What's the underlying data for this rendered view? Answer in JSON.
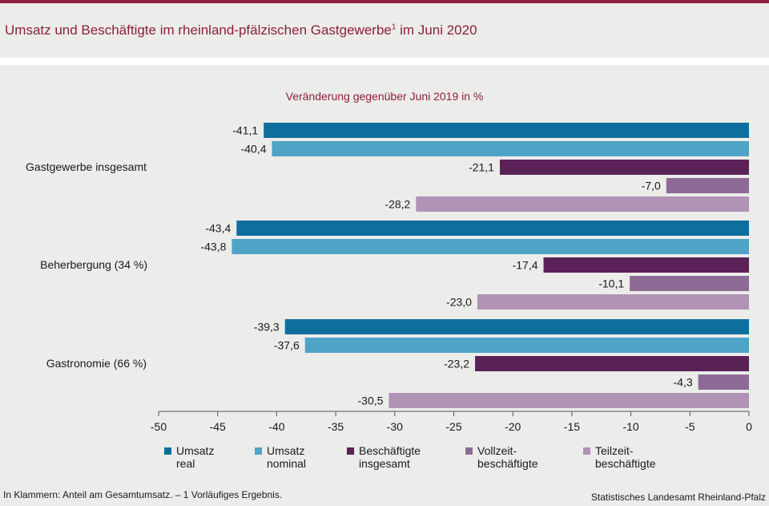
{
  "title_text": "Umsatz und Beschäftigte im rheinland-pfälzischen Gastgewerbe",
  "title_sup": "1",
  "title_suffix": " im Juni 2020",
  "footnote": "In Klammern: Anteil am Gesamtumsatz. – 1 Vorläufiges Ergebnis.",
  "source": "Statistisches Landesamt Rheinland-Pfalz",
  "colors": {
    "title": "#8c1f3c",
    "umsatz_real": "#0e6f9f",
    "umsatz_nominal": "#4fa3c6",
    "beschaeftigte_insgesamt": "#5b2258",
    "vollzeit": "#8e6b96",
    "teilzeit": "#b093b5"
  },
  "chart_data": {
    "type": "bar",
    "orientation": "horizontal",
    "subtitle": "Veränderung gegenüber Juni 2019 in %",
    "categories": [
      "Gastgewerbe insgesamt",
      "Beherbergung (34 %)",
      "Gastronomie (66 %)"
    ],
    "series": [
      {
        "name": "Umsatz real",
        "legend_lines": [
          "Umsatz",
          "real"
        ],
        "color": "#0e6f9f",
        "values": [
          -41.1,
          -43.4,
          -39.3
        ],
        "labels": [
          "-41,1",
          "-43,4",
          "-39,3"
        ]
      },
      {
        "name": "Umsatz nominal",
        "legend_lines": [
          "Umsatz",
          "nominal"
        ],
        "color": "#4fa3c6",
        "values": [
          -40.4,
          -43.8,
          -37.6
        ],
        "labels": [
          "-40,4",
          "-43,8",
          "-37,6"
        ]
      },
      {
        "name": "Beschäftigte insgesamt",
        "legend_lines": [
          "Beschäftigte",
          "insgesamt"
        ],
        "color": "#5b2258",
        "values": [
          -21.1,
          -17.4,
          -23.2
        ],
        "labels": [
          "-21,1",
          "-17,4",
          "-23,2"
        ]
      },
      {
        "name": "Vollzeitbeschäftigte",
        "legend_lines": [
          "Vollzeit-",
          "beschäftigte"
        ],
        "color": "#8e6b96",
        "values": [
          -7.0,
          -10.1,
          -4.3
        ],
        "labels": [
          "-7,0",
          "-10,1",
          "-4,3"
        ]
      },
      {
        "name": "Teilzeitbeschäftigte",
        "legend_lines": [
          "Teilzeit-",
          "beschäftigte"
        ],
        "color": "#b093b5",
        "values": [
          -28.2,
          -23.0,
          -30.5
        ],
        "labels": [
          "-28,2",
          "-23,0",
          "-30,5"
        ]
      }
    ],
    "xlim": [
      -50,
      0
    ],
    "xticks": [
      -50,
      -45,
      -40,
      -35,
      -30,
      -25,
      -20,
      -15,
      -10,
      -5,
      0
    ],
    "grid": false,
    "legend_position": "bottom"
  }
}
